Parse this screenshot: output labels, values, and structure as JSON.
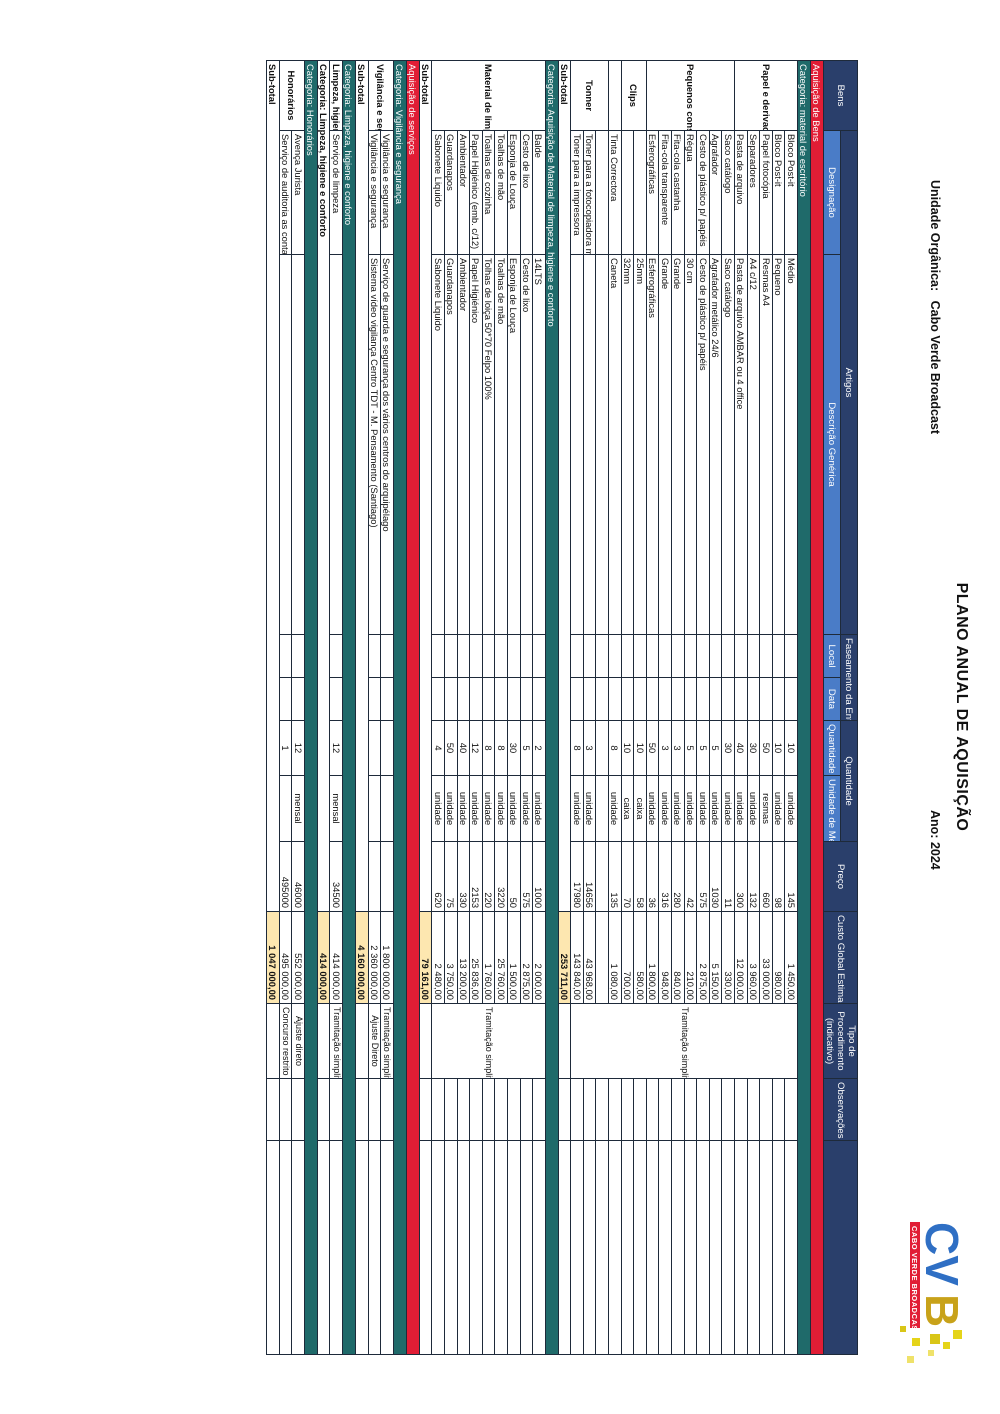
{
  "header": {
    "logo_text": "CVB",
    "logo_subtext": "CABO VERDE BROADCAST",
    "title": "PLANO ANUAL DE AQUISIÇÃO",
    "unit_label": "Unidade Orgânica:",
    "unit_value": "Cabo Verde Broadcast",
    "year_label": "Ano:",
    "year_value": "2024"
  },
  "columns": {
    "bens": "Bens",
    "artigos": "Artigos",
    "designacao": "Designação",
    "descricao": "Descrição Genérica",
    "fasea": "Faseamento da Entrega",
    "local": "Local",
    "data": "Data",
    "quantidade_group": "Quantidade",
    "quantidade": "Quantidade",
    "unidade": "Unidade de Medida",
    "preco": "Preço",
    "custo": "Custo Global Estimado",
    "tipo": "Tipo de Procedimento (indicativo)",
    "obs": "Observações"
  },
  "sections": {
    "bens": "Aquisição de Bens",
    "servicos": "Aquisição de serviços"
  },
  "categories": {
    "escritorio": "Categoria: material de escritório",
    "limpeza": "Categoria: Aquisição de Material de limpeza, higiene e conforto",
    "vigilancia": "Categoria: Vigilância e segurança",
    "limpeza_serv": "Categoria: Limpeza, higiene e conforto",
    "limpeza_serv_sub": "Categoria: Limpeza, higiene e conforto",
    "honorarios": "Categoria: Honorários"
  },
  "groups": {
    "papel": "Papel e derivados",
    "pequenos": "Pequenos consumíveis",
    "clips": "Clips",
    "tonner": "Tonner",
    "material_limpeza": "Material de limpeza, higiene e conforto",
    "vigilancia": "Vigilância e segurança",
    "limpeza_serv": "Limpeza, higiene e conforto",
    "honorarios": "Honorários"
  },
  "procedures": {
    "tramitacao": "Tramitação simplificada",
    "ajuste_direto_cap": "Ajuste Direto",
    "ajuste_direto": "Ajuste direto",
    "concurso": "Concurso restrito"
  },
  "subtotal_label": "Sub-total",
  "escritorio_rows": [
    {
      "des": "Bloco Post-it",
      "desc": "Médio",
      "qty": "10",
      "un": "unidade",
      "preco": "145",
      "custo": "1 450,00"
    },
    {
      "des": "Bloco Post-it",
      "desc": "Pequeno",
      "qty": "10",
      "un": "unidade",
      "preco": "98",
      "custo": "980,00"
    },
    {
      "des": "Papel fotocópia",
      "desc": "Resmas A4",
      "qty": "50",
      "un": "resmas",
      "preco": "660",
      "custo": "33 000,00"
    },
    {
      "des": "Separadores",
      "desc": "A4 c/12",
      "qty": "30",
      "un": "unidade",
      "preco": "132",
      "custo": "3 960,00"
    },
    {
      "des": "Pasta de arquivo",
      "desc": "Pasta de arquivo AMBAR ou 4 office",
      "qty": "40",
      "un": "unidade",
      "preco": "300",
      "custo": "12 000,00"
    },
    {
      "des": "Saco catálogo",
      "desc": "Saco catálogo",
      "qty": "30",
      "un": "unidade",
      "preco": "11",
      "custo": "330,00"
    },
    {
      "des": "Agrafador",
      "desc": "Agrafador metálico 24/6",
      "qty": "5",
      "un": "unidade",
      "preco": "1030",
      "custo": "5 150,00"
    },
    {
      "des": "Cesto de plástico p/ papéis",
      "desc": "Cesto de plástico p/ papéis",
      "qty": "5",
      "un": "unidade",
      "preco": "575",
      "custo": "2 875,00"
    },
    {
      "des": "Régua",
      "desc": "30 cm",
      "qty": "5",
      "un": "unidade",
      "preco": "42",
      "custo": "210,00"
    },
    {
      "des": "Fita-cola castanha",
      "desc": "Grande",
      "qty": "3",
      "un": "unidade",
      "preco": "280",
      "custo": "840,00"
    },
    {
      "des": "Fita-cola transparente",
      "desc": "Grande",
      "qty": "3",
      "un": "unidade",
      "preco": "316",
      "custo": "948,00"
    },
    {
      "des": "Esferográficas",
      "desc": "Esferográficas",
      "qty": "50",
      "un": "unidade",
      "preco": "36",
      "custo": "1 800,00"
    },
    {
      "des": "",
      "desc": "25mm",
      "qty": "10",
      "un": "caixa",
      "preco": "58",
      "custo": "580,00"
    },
    {
      "des": "",
      "desc": "32mm",
      "qty": "10",
      "un": "caixa",
      "preco": "70",
      "custo": "700,00"
    },
    {
      "des": "Tinta Correctora",
      "desc": "Caneta",
      "qty": "8",
      "un": "unidade",
      "preco": "135",
      "custo": "1 080,00"
    },
    {
      "des": "",
      "desc": "",
      "qty": "",
      "un": "",
      "preco": "",
      "custo": ""
    },
    {
      "des": "Toner para a fotocopiadora multifunções",
      "desc": "",
      "qty": "3",
      "un": "unidade",
      "preco": "14656",
      "custo": "43 968,00"
    },
    {
      "des": "Toner para a impressora",
      "desc": "",
      "qty": "8",
      "un": "unidade",
      "preco": "17980",
      "custo": "143 840,00"
    }
  ],
  "escritorio_subtotal": "253 711,00",
  "limpeza_rows": [
    {
      "des": "Balde",
      "desc": "14LTS",
      "qty": "2",
      "un": "unidade",
      "preco": "1000",
      "custo": "2 000,00"
    },
    {
      "des": "Cesto de lixo",
      "desc": "Cesto de lixo",
      "qty": "5",
      "un": "unidade",
      "preco": "575",
      "custo": "2 875,00"
    },
    {
      "des": "Esponja de Louça",
      "desc": "Esponja de Louça",
      "qty": "30",
      "un": "unidade",
      "preco": "50",
      "custo": "1 500,00"
    },
    {
      "des": "Toalhas de mão",
      "desc": "Toalhas de mão",
      "qty": "8",
      "un": "unidade",
      "preco": "3220",
      "custo": "25 760,00"
    },
    {
      "des": "Toalhas de cozinha",
      "desc": "Tolhas de loiça 50*70 Felpo 100%",
      "qty": "8",
      "un": "unidade",
      "preco": "220",
      "custo": "1 760,00"
    },
    {
      "des": "Papel Higiénico (emb. c/12)",
      "desc": "Papel Higiénico",
      "qty": "12",
      "un": "unidade",
      "preco": "2153",
      "custo": "25 836,00"
    },
    {
      "des": "Ambientador",
      "desc": "Ambientador",
      "qty": "40",
      "un": "unidade",
      "preco": "330",
      "custo": "13 200,00"
    },
    {
      "des": "Guardanapos",
      "desc": "Guardanapos",
      "qty": "50",
      "un": "unidade",
      "preco": "75",
      "custo": "3 750,00"
    },
    {
      "des": "Sabonete Liquido",
      "desc": "Sabonete Liquido",
      "qty": "4",
      "un": "unidade",
      "preco": "620",
      "custo": "2 480,00"
    }
  ],
  "limpeza_subtotal": "79 161,00",
  "vigilancia_rows": [
    {
      "des": "Vigilância e segurança",
      "desc": "Serviço de guarda e segurança dos vários centros do arquipélago",
      "custo": "1 800 000,00"
    },
    {
      "des": "Vigilância e segurança",
      "desc": "Sistema vídeo vigilança Centro TDT - M. Pensamento (Santiago)",
      "custo": "2 360 000,00"
    }
  ],
  "vigilancia_subtotal": "4 160 000,00",
  "limpeza_serv_row": {
    "des": "Serviço de limpeza",
    "qty": "12",
    "un": "mensal",
    "preco": "34500",
    "custo": "414 000,00"
  },
  "limpeza_serv_total": "414 000,00",
  "honorarios_rows": [
    {
      "des": "Avença Jurista",
      "qty": "12",
      "un": "mensal",
      "preco": "46000",
      "custo": "552 000,00"
    },
    {
      "des": "Serviço de auditoria as contas",
      "qty": "1",
      "un": "",
      "preco": "495000",
      "custo": "495 000,00"
    }
  ],
  "honorarios_subtotal": "1 047 000,00",
  "colors": {
    "section_red": "#e11d35",
    "category_teal": "#1f6a6a",
    "header_blue": "#2f5aa0",
    "highlight": "#fde7b0"
  }
}
